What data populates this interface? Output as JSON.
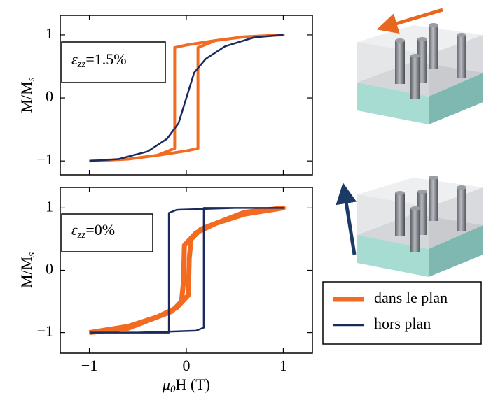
{
  "chart_data": [
    {
      "type": "line",
      "ylabel": {
        "main": "M/M",
        "sub": "s"
      },
      "annotation": {
        "symbol": "ε",
        "sub": "zz",
        "rest": "=1.5%"
      },
      "xlim": [
        -1.3,
        1.3
      ],
      "ylim": [
        -1.22,
        1.31
      ],
      "xticks": [
        -1,
        0,
        1
      ],
      "yticks": [
        {
          "value": -1,
          "label": "−1"
        },
        0,
        1
      ],
      "series": [
        {
          "color": "#f26b21",
          "linewidth": 4,
          "x": [
            -1,
            -0.6,
            -0.3,
            0,
            0.12,
            0.12,
            0.3,
            0.6,
            1,
            0.6,
            0.3,
            0,
            -0.12,
            -0.12,
            -0.3,
            -0.6,
            -1
          ],
          "values": [
            -1,
            -0.97,
            -0.91,
            -0.84,
            -0.8,
            0.8,
            0.91,
            0.97,
            1,
            0.97,
            0.91,
            0.84,
            0.8,
            -0.8,
            -0.91,
            -0.97,
            -1
          ]
        },
        {
          "color": "#1a2a5c",
          "linewidth": 2.5,
          "x": [
            -1,
            -0.7,
            -0.4,
            -0.2,
            -0.08,
            0,
            0.08,
            0.2,
            0.4,
            0.7,
            1
          ],
          "values": [
            -1,
            -0.97,
            -0.85,
            -0.65,
            -0.4,
            0,
            0.4,
            0.62,
            0.82,
            0.96,
            1
          ]
        }
      ]
    },
    {
      "type": "line",
      "ylabel": {
        "main": "M/M",
        "sub": "s"
      },
      "xlabel": {
        "symbol": "μ",
        "sub": "0",
        "rest": "H (T)"
      },
      "annotation": {
        "symbol": "ε",
        "sub": "zz",
        "rest": "=0%"
      },
      "xlim": [
        -1.3,
        1.3
      ],
      "ylim": [
        -1.33,
        1.33
      ],
      "xticks": [
        {
          "value": -1,
          "label": "−1"
        },
        0,
        1
      ],
      "yticks": [
        {
          "value": -1,
          "label": "−1"
        },
        0,
        1
      ],
      "series": [
        {
          "name": "dans le plan",
          "color": "#f26b21",
          "linewidth": 7,
          "x": [
            -1,
            -0.6,
            -0.3,
            -0.1,
            0.02,
            0.03,
            0.05,
            0.15,
            0.3,
            0.6,
            1,
            0.6,
            0.3,
            0.1,
            -0.02,
            -0.03,
            -0.05,
            -0.15,
            -0.3,
            -0.6,
            -1
          ],
          "values": [
            -1,
            -0.9,
            -0.75,
            -0.6,
            -0.4,
            0.2,
            0.5,
            0.66,
            0.75,
            0.93,
            1,
            0.9,
            0.75,
            0.6,
            0.4,
            -0.2,
            -0.5,
            -0.66,
            -0.75,
            -0.93,
            -1
          ]
        },
        {
          "name": "hors plan",
          "color": "#1a2a5c",
          "linewidth": 2.5,
          "x": [
            -1,
            -0.5,
            0.1,
            0.18,
            0.18,
            0.5,
            1,
            0.5,
            -0.1,
            -0.18,
            -0.18,
            -0.5,
            -1
          ],
          "values": [
            -1,
            -1,
            -0.97,
            -0.92,
            1,
            1,
            1,
            1,
            0.97,
            0.92,
            -1,
            -1,
            -1
          ]
        }
      ]
    }
  ]
}
